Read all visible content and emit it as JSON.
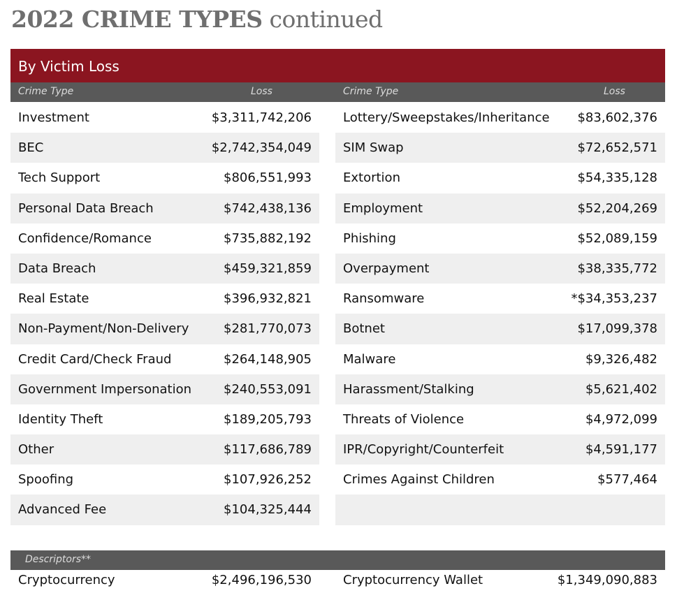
{
  "title": {
    "bold": "2022 CRIME TYPES",
    "light": "continued"
  },
  "section": "By Victim Loss",
  "headers": {
    "crime_type": "Crime Type",
    "loss": "Loss"
  },
  "left": [
    {
      "name": "Investment",
      "loss": "$3,311,742,206"
    },
    {
      "name": "BEC",
      "loss": "$2,742,354,049"
    },
    {
      "name": "Tech Support",
      "loss": "$806,551,993"
    },
    {
      "name": "Personal Data Breach",
      "loss": "$742,438,136"
    },
    {
      "name": "Confidence/Romance",
      "loss": "$735,882,192"
    },
    {
      "name": "Data Breach",
      "loss": "$459,321,859"
    },
    {
      "name": "Real Estate",
      "loss": "$396,932,821"
    },
    {
      "name": "Non-Payment/Non-Delivery",
      "loss": "$281,770,073"
    },
    {
      "name": "Credit Card/Check Fraud",
      "loss": "$264,148,905"
    },
    {
      "name": "Government Impersonation",
      "loss": "$240,553,091"
    },
    {
      "name": "Identity Theft",
      "loss": "$189,205,793"
    },
    {
      "name": "Other",
      "loss": "$117,686,789"
    },
    {
      "name": "Spoofing",
      "loss": "$107,926,252"
    },
    {
      "name": "Advanced Fee",
      "loss": "$104,325,444"
    }
  ],
  "right": [
    {
      "name": "Lottery/Sweepstakes/Inheritance",
      "loss": "$83,602,376"
    },
    {
      "name": "SIM Swap",
      "loss": "$72,652,571"
    },
    {
      "name": "Extortion",
      "loss": "$54,335,128"
    },
    {
      "name": "Employment",
      "loss": "$52,204,269"
    },
    {
      "name": "Phishing",
      "loss": "$52,089,159"
    },
    {
      "name": "Overpayment",
      "loss": "$38,335,772"
    },
    {
      "name": "Ransomware",
      "loss": "*$34,353,237"
    },
    {
      "name": "Botnet",
      "loss": "$17,099,378"
    },
    {
      "name": "Malware",
      "loss": "$9,326,482"
    },
    {
      "name": "Harassment/Stalking",
      "loss": "$5,621,402"
    },
    {
      "name": "Threats of Violence",
      "loss": "$4,972,099"
    },
    {
      "name": "IPR/Copyright/Counterfeit",
      "loss": "$4,591,177"
    },
    {
      "name": "Crimes Against Children",
      "loss": "$577,464"
    },
    {
      "name": "",
      "loss": ""
    }
  ],
  "descriptors": {
    "header": "Descriptors**",
    "left": {
      "name": "Cryptocurrency",
      "loss": "$2,496,196,530"
    },
    "right": {
      "name": "Cryptocurrency Wallet",
      "loss": "$1,349,090,883"
    }
  }
}
